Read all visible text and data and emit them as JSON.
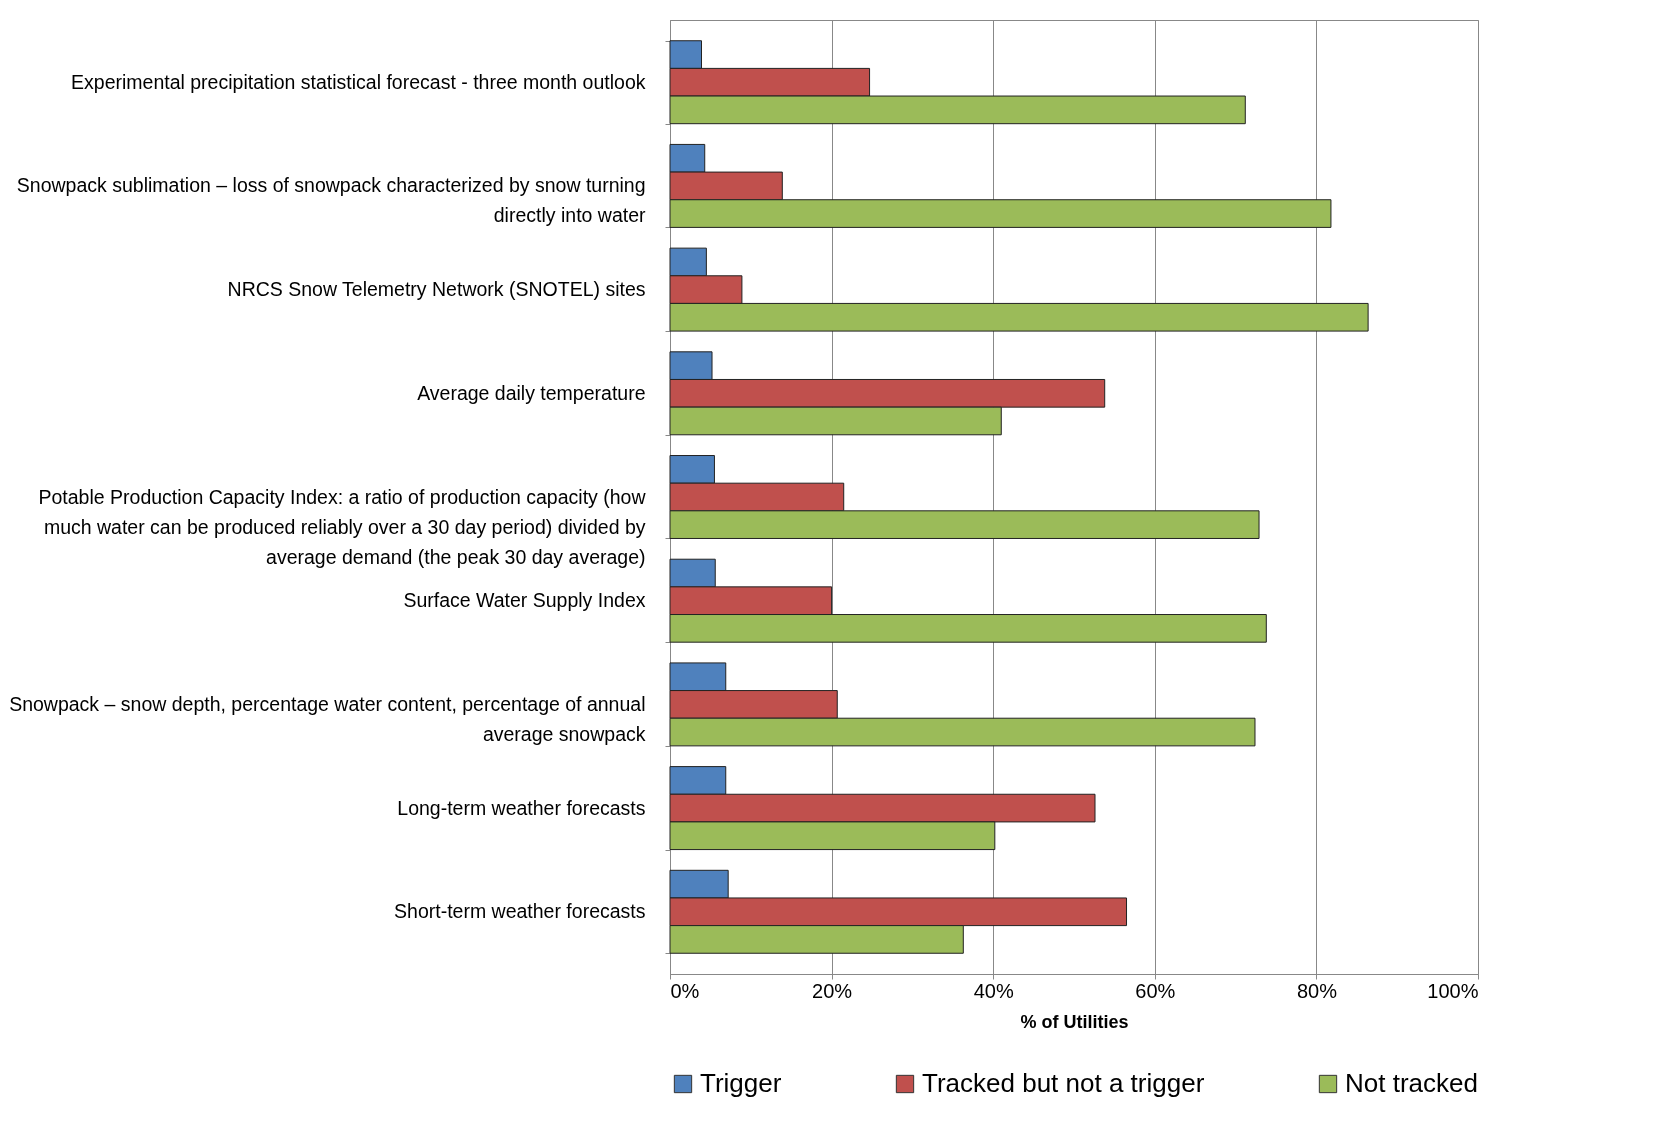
{
  "chart_data": {
    "type": "bar",
    "orientation": "horizontal",
    "xlabel": "% of Utilities",
    "categories": [
      "Experimental precipitation statistical forecast - three month outlook",
      "Snowpack sublimation – loss of snowpack characterized by snow turning directly into water",
      "NRCS Snow Telemetry Network (SNOTEL) sites",
      "Average daily temperature",
      "Potable Production Capacity Index: a ratio of production capacity (how much water can be produced reliably over a 30 day period) divided by average demand (the peak 30 day average)",
      "Surface Water Supply Index",
      "Snowpack – snow depth, percentage water content, percentage of annual average snowpack",
      "Long-term weather forecasts",
      "Short-term weather forecasts"
    ],
    "series": [
      {
        "name": "Trigger",
        "color": "#4f81bd",
        "values": [
          3.9,
          4.3,
          4.5,
          5.2,
          5.5,
          5.6,
          6.9,
          6.9,
          7.2
        ]
      },
      {
        "name": "Tracked but not a trigger",
        "color": "#c0504d",
        "values": [
          24.7,
          13.9,
          8.9,
          53.8,
          21.5,
          20.0,
          20.7,
          52.6,
          56.5
        ]
      },
      {
        "name": "Not tracked",
        "color": "#9bbb59",
        "values": [
          71.2,
          81.8,
          86.4,
          41.0,
          72.9,
          73.8,
          72.4,
          40.2,
          36.3
        ]
      }
    ],
    "xlim": [
      0,
      100
    ],
    "xticks": [
      {
        "value": 0,
        "label": "0%"
      },
      {
        "value": 20,
        "label": "20%"
      },
      {
        "value": 40,
        "label": "40%"
      },
      {
        "value": 60,
        "label": "60%"
      },
      {
        "value": 80,
        "label": "80%"
      },
      {
        "value": 100,
        "label": "100%"
      }
    ],
    "grid": "x",
    "legend": "bottom"
  }
}
